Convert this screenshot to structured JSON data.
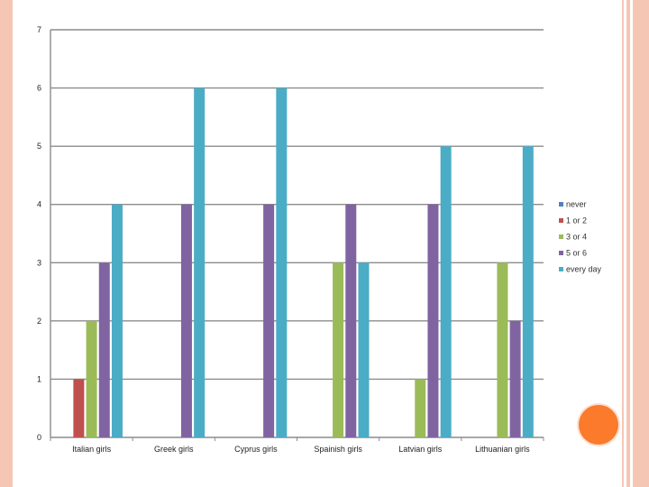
{
  "chart_data": {
    "type": "bar",
    "title": "",
    "xlabel": "",
    "ylabel": "",
    "ylim": [
      0,
      7
    ],
    "yticks": [
      0,
      1,
      2,
      3,
      4,
      5,
      6,
      7
    ],
    "grid": true,
    "legend_position": "right",
    "categories": [
      "Italian girls",
      "Greek girls",
      "Cyprus girls",
      "Spainish girls",
      "Latvian girls",
      "Lithuanian girls"
    ],
    "series": [
      {
        "name": "never",
        "color": "#4f81bd",
        "values": [
          0,
          0,
          0,
          0,
          0,
          0
        ]
      },
      {
        "name": "1 or 2",
        "color": "#c0504d",
        "values": [
          1,
          0,
          0,
          0,
          0,
          0
        ]
      },
      {
        "name": "3 or 4",
        "color": "#9bbb59",
        "values": [
          2,
          0,
          0,
          3,
          1,
          3
        ]
      },
      {
        "name": "5 or 6",
        "color": "#8064a2",
        "values": [
          3,
          4,
          4,
          4,
          4,
          2
        ]
      },
      {
        "name": "every day",
        "color": "#4bacc6",
        "values": [
          4,
          6,
          6,
          3,
          5,
          5
        ]
      }
    ]
  },
  "theme": {
    "border_color": "#f6c6b4",
    "accent_circle_color": "#fb7a2c",
    "gridline_color": "#8c8c8c"
  }
}
